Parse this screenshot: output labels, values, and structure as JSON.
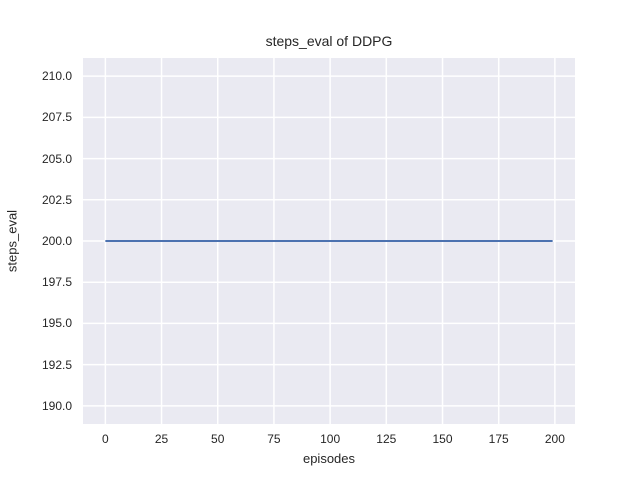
{
  "chart_data": {
    "type": "line",
    "title": "steps_eval of DDPG",
    "xlabel": "episodes",
    "ylabel": "steps_eval",
    "x": [
      0,
      199
    ],
    "series": [
      {
        "name": "steps_eval",
        "values": [
          200,
          200
        ],
        "color": "#4c72b0"
      }
    ],
    "constant_value": 200,
    "xlim": [
      -9.95,
      208.95
    ],
    "ylim": [
      188.9,
      211.1
    ],
    "xticks": [
      0,
      25,
      50,
      75,
      100,
      125,
      150,
      175,
      200
    ],
    "xtick_labels": [
      "0",
      "25",
      "50",
      "75",
      "100",
      "125",
      "150",
      "175",
      "200"
    ],
    "yticks": [
      190.0,
      192.5,
      195.0,
      197.5,
      200.0,
      202.5,
      205.0,
      207.5,
      210.0
    ],
    "ytick_labels": [
      "190.0",
      "192.5",
      "195.0",
      "197.5",
      "200.0",
      "202.5",
      "205.0",
      "207.5",
      "210.0"
    ],
    "grid": true,
    "legend": false,
    "plot_bg_color": "#eaeaf2",
    "grid_color": "#ffffff",
    "line_color": "#4c72b0",
    "text_color": "#262626"
  }
}
